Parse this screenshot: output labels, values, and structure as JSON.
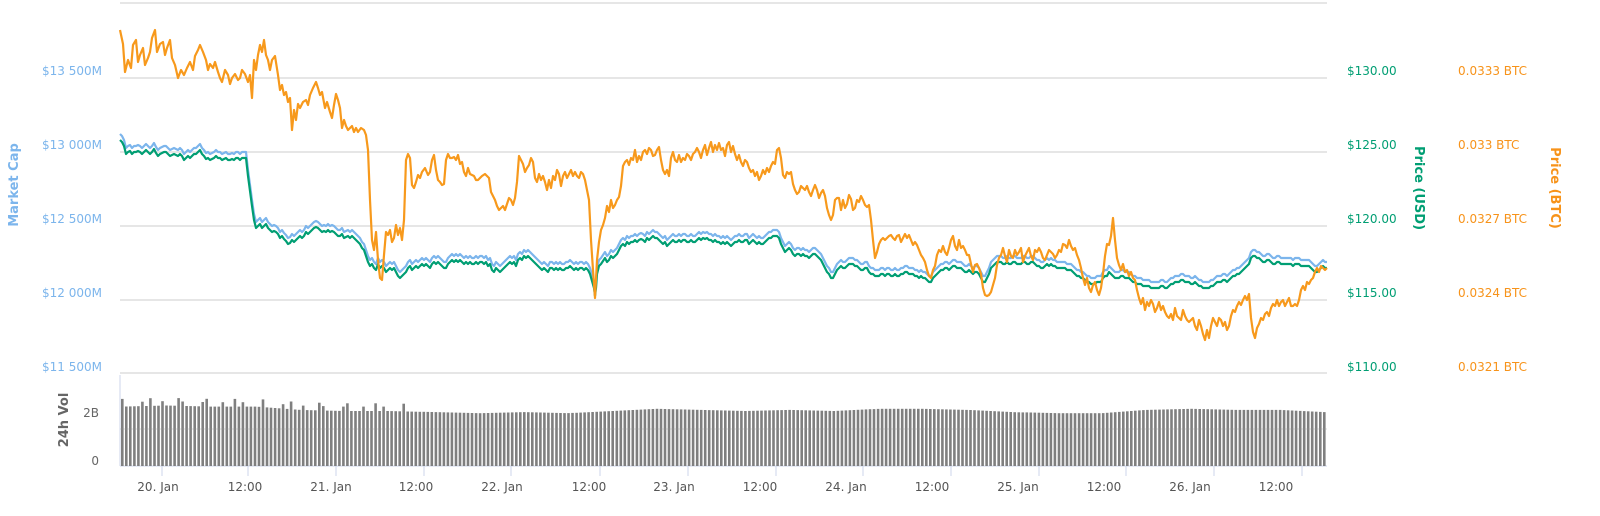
{
  "chart_data": {
    "type": "line",
    "title": "",
    "x_labels": [
      "20. Jan",
      "12:00",
      "21. Jan",
      "12:00",
      "22. Jan",
      "12:00",
      "23. Jan",
      "12:00",
      "24. Jan",
      "12:00",
      "25. Jan",
      "12:00",
      "26. Jan",
      "12:00"
    ],
    "axes": {
      "left": {
        "title": "Market Cap",
        "ticks": [
          "$13 500M",
          "$13 000M",
          "$12 500M",
          "$12 000M",
          "$11 500M"
        ],
        "range": [
          11500,
          13500
        ],
        "unit": "M USD"
      },
      "right_usd": {
        "title": "Price (USD)",
        "ticks": [
          "$130.00",
          "$125.00",
          "$120.00",
          "$115.00",
          "$110.00"
        ],
        "range": [
          110,
          130
        ]
      },
      "right_btc": {
        "title": "Price (BTC)",
        "ticks": [
          "0.0333 BTC",
          "0.033 BTC",
          "0.0327 BTC",
          "0.0324 BTC",
          "0.0321 BTC"
        ],
        "range": [
          0.0321,
          0.0333
        ]
      },
      "volume": {
        "title": "24h Vol",
        "ticks": [
          "2B",
          "0"
        ]
      }
    },
    "x": [
      "20 Jan 00:00",
      "20 Jan 06:00",
      "20 Jan 12:00",
      "20 Jan 18:00",
      "21 Jan 00:00",
      "21 Jan 06:00",
      "21 Jan 12:00",
      "21 Jan 18:00",
      "22 Jan 00:00",
      "22 Jan 06:00",
      "22 Jan 12:00",
      "22 Jan 18:00",
      "23 Jan 00:00",
      "23 Jan 06:00",
      "23 Jan 12:00",
      "23 Jan 18:00",
      "24 Jan 00:00",
      "24 Jan 06:00",
      "24 Jan 12:00",
      "24 Jan 18:00",
      "25 Jan 00:00",
      "25 Jan 06:00",
      "25 Jan 12:00",
      "25 Jan 18:00",
      "26 Jan 00:00",
      "26 Jan 06:00",
      "26 Jan 12:00",
      "26 Jan 18:00"
    ],
    "series": [
      {
        "name": "Market Cap",
        "color": "#7cb5ec",
        "unit": "M USD",
        "values": [
          13030,
          13020,
          12960,
          12500,
          12490,
          12470,
          12220,
          12280,
          12290,
          12260,
          12240,
          12380,
          12420,
          12440,
          12440,
          12380,
          12260,
          12200,
          12190,
          12180,
          12270,
          12260,
          12180,
          12130,
          12140,
          12190,
          12310,
          12250
        ]
      },
      {
        "name": "Price (USD)",
        "color": "#009e73",
        "values": [
          124.6,
          124.5,
          124.0,
          118.1,
          118.0,
          117.8,
          115.4,
          115.9,
          116.0,
          115.8,
          115.5,
          116.8,
          117.1,
          117.3,
          117.3,
          116.7,
          115.5,
          114.9,
          114.8,
          114.7,
          115.6,
          115.5,
          114.6,
          114.1,
          114.2,
          114.7,
          115.9,
          115.3
        ]
      },
      {
        "name": "Price (BTC)",
        "color": "#f7931a",
        "values": [
          0.03345,
          0.03335,
          0.03335,
          0.03318,
          0.03305,
          0.03298,
          0.03235,
          0.03285,
          0.033,
          0.0329,
          0.03288,
          0.033,
          0.03303,
          0.03305,
          0.033,
          0.03285,
          0.03275,
          0.03258,
          0.03256,
          0.0325,
          0.03252,
          0.03254,
          0.0324,
          0.03233,
          0.03226,
          0.03227,
          0.03235,
          0.03248
        ]
      },
      {
        "name": "24h Vol",
        "color": "#777777",
        "unit": "B USD",
        "values": [
          2.7,
          2.75,
          2.7,
          2.7,
          2.55,
          2.5,
          2.5,
          2.45,
          2.4,
          2.45,
          2.4,
          2.5,
          2.6,
          2.55,
          2.5,
          2.55,
          2.5,
          2.6,
          2.6,
          2.55,
          2.45,
          2.4,
          2.4,
          2.55,
          2.6,
          2.55,
          2.55,
          2.45
        ]
      }
    ],
    "grid": true,
    "legend": "none"
  },
  "paths": {
    "btc": "120,30 123,44 125,72 128,60 131,68 133,45 136,40 138,62 140,55 143,48 145,65 148,58 150,52 152,38 155,30 157,52 160,44 163,42 165,55 167,48 170,40 172,58 175,65 178,78 181,70 184,75 187,68 190,62 193,70 195,56 198,50 200,45 203,52 206,60 208,70 210,64 213,68 215,62 218,72 220,78 222,82 225,70 228,75 230,84 232,78 235,74 238,80 240,78 242,70 245,74 248,82 250,75 252,98 254,60 256,70 258,55 260,45 262,52 264,40 266,55 268,60 270,70 272,60 275,56 278,75 280,90 282,85 284,95 286,92 288,102 290,98 292,130 294,110 296,120 298,104 300,108 303,102 306,100 308,105 310,95 313,88 316,82 318,88 320,95 322,92 325,108 327,102 330,112 332,118 334,105 336,94 338,100 340,108 342,128 344,120 346,126 348,130 350,128 352,126 354,132 356,128 358,132 361,128 364,130 366,135 368,150 370,200 372,240 374,250 376,232 378,260 380,278 382,280 384,255 386,232 388,235 390,230 392,242 394,238 396,225 398,235 400,228 402,240 404,220 406,160 408,154 410,158 412,185 414,188 416,182 418,175 420,178 422,172 425,168 428,175 430,172 432,160 434,155 436,170 438,180 440,182 442,185 444,184 446,160 448,154 450,158 452,158 454,157 456,160 458,155 460,164 462,162 464,172 466,176 468,168 470,174 472,175 474,176 476,180 478,180 480,178 482,176 485,174 487,176 489,178 491,192 493,196 495,200 497,206 499,210 501,208 503,206 505,210 507,204 509,198 511,200 513,205 515,198 517,182 519,156 521,160 523,164 525,172 527,168 529,165 531,158 533,162 535,178 537,182 539,174 541,180 543,176 545,182 547,190 549,180 551,188 553,176 555,180 557,170 559,174 561,186 563,176 565,172 567,178 569,174 571,170 573,176 575,172 577,176 579,178 581,172 583,174 585,180 587,190 589,200 591,240 593,270 595,298 597,260 599,242 601,230 603,225 605,218 607,206 609,212 611,200 613,208 615,205 617,200 619,197 621,186 623,166 625,162 627,160 629,165 631,158 633,160 635,150 637,162 639,156 641,160 643,152 645,150 647,154 649,148 651,150 653,156 655,155 657,150 659,147 661,160 663,170 665,174 667,170 669,176 671,158 673,152 675,160 677,162 679,155 681,162 683,158 685,160 687,154 689,156 691,160 693,154 695,152 697,148 699,152 701,158 703,150 705,145 707,155 709,148 711,142 713,152 715,145 717,150 719,143 721,150 723,148 725,156 727,145 729,142 731,152 733,146 735,154 737,160 739,155 741,162 743,166 745,160 747,162 749,168 751,172 753,170 755,176 757,172 759,180 761,176 763,170 765,174 767,168 769,172 771,166 773,162 775,164 777,150 779,148 781,158 783,175 785,178 787,172 789,174 791,172 793,184 795,190 797,194 799,192 801,186 803,188 805,190 807,186 809,192 811,196 813,190 815,185 817,190 819,198 821,193 823,190 825,196 827,208 829,215 831,220 833,215 835,200 837,198 839,198 841,210 843,200 845,208 847,204 849,195 851,199 853,210 855,208 857,200 859,202 861,196 863,200 865,205 867,207 869,205 871,220 873,240 875,258 877,252 879,244 881,240 883,238 885,240 887,238 889,236 891,235 893,238 895,240 897,236 899,235 901,242 903,238 905,234 907,238 909,235 911,240 913,245 915,242 917,245 919,250 921,255 923,258 925,262 927,270 929,276 931,278 933,270 935,266 937,255 939,250 941,252 943,246 945,252 947,255 949,248 951,240 953,236 955,246 957,250 959,240 961,248 963,246 965,250 967,255 969,255 971,264 973,272 975,265 977,264 979,268 981,274 983,288 985,295 987,296 989,295 991,292 993,285 995,278 997,265 999,258 1001,255 1003,248 1005,256 1007,262 1009,250 1011,256 1013,258 1015,250 1017,255 1019,252 1021,248 1023,262 1025,256 1027,252 1029,248 1031,256 1033,260 1035,250 1037,252 1039,248 1041,252 1043,258 1045,260 1047,255 1049,250 1051,252 1053,254 1055,258 1057,255 1059,250 1061,252 1063,244 1065,245 1067,248 1069,240 1071,246 1073,250 1075,248 1077,255 1079,260 1081,268 1083,278 1085,285 1087,278 1089,288 1091,292 1093,285 1095,282 1097,290 1099,295 1101,288 1103,274 1105,256 1107,244 1109,245 1111,236 1113,218 1115,240 1117,258 1119,265 1121,270 1123,264 1125,272 1127,270 1129,276 1131,272 1133,278 1135,280 1137,290 1139,298 1141,304 1143,298 1145,310 1147,302 1149,306 1151,300 1153,304 1155,312 1157,308 1159,302 1161,310 1163,306 1165,312 1167,316 1169,318 1171,314 1173,320 1175,308 1177,316 1179,318 1181,320 1183,310 1185,316 1187,320 1189,322 1191,320 1193,318 1195,326 1197,330 1199,320 1201,326 1203,334 1205,340 1207,330 1209,338 1211,326 1213,318 1215,322 1217,326 1219,318 1221,320 1223,326 1225,322 1227,330 1229,326 1231,316 1233,310 1235,312 1237,306 1239,302 1241,305 1243,300 1245,296 1247,300 1249,294 1251,318 1253,332 1255,338 1257,328 1259,324 1261,318 1263,320 1265,314 1267,312 1269,316 1271,308 1273,304 1275,306 1277,300 1279,306 1281,302 1283,300 1285,306 1287,302 1289,298 1291,306 1293,306 1295,304 1297,306 1299,300 1301,290 1303,286 1305,290 1307,282 1309,284 1311,280 1313,278 1315,272 1317,268 1319,272 1321,266 1323,268 1325,270 1327,268",
    "mcap": "120,134 122,136 124,140 126,148 128,146 130,145 132,148 134,146 136,146 138,145 140,146 142,148 144,146 146,144 148,146 150,148 152,146 154,143 156,147 158,150 160,148 162,147 164,146 166,146 168,148 170,150 172,149 174,148 176,149 178,150 180,148 182,150 184,154 186,152 188,150 190,152 192,150 194,148 196,148 198,146 200,144 202,148 204,150 206,153 208,152 210,154 212,153 214,152 216,150 218,152 220,152 222,154 224,153 226,152 228,154 230,154 232,153 234,154 236,152 238,152 240,154 242,152 244,152 246,152 248,170 250,185 252,200 254,214 256,222 258,220 260,218 262,222 264,220 266,218 268,222 270,224 272,226 274,225 276,226 278,228 280,232 282,230 284,233 286,235 288,238 290,237 292,234 294,236 296,234 298,232 300,230 302,232 304,230 306,226 308,228 310,226 312,224 314,222 316,221 318,222 320,224 322,226 324,225 326,226 328,224 330,226 332,225 334,226 336,228 338,230 340,230 342,228 344,232 346,231 348,230 350,232 352,230 354,232 356,234 358,236 360,238 362,242 364,244 366,250 368,256 370,260 372,258 374,262 376,264 378,258 380,262 382,260 384,262 386,266 388,264 390,262 392,264 394,262 396,266 398,270 400,272 402,270 404,268 406,266 408,262 410,260 412,264 414,262 416,260 418,262 420,260 422,258 424,260 426,258 428,260 430,262 432,258 434,256 436,258 438,256 440,258 442,260 444,262 446,262 448,258 450,256 452,254 454,256 456,254 458,256 460,254 462,256 464,258 466,256 468,258 470,256 472,258 474,258 476,256 478,258 480,256 482,256 484,258 486,256 488,260 490,258 492,264 494,266 496,262 498,264 500,266 502,264 504,262 506,260 508,258 510,256 512,258 514,256 516,260 518,254 520,252 522,254 524,250 526,252 528,250 530,252 532,254 534,256 536,258 538,260 540,262 542,264 544,262 546,264 548,266 550,262 552,262 554,264 556,262 558,264 560,262 562,264 564,264 566,262 568,262 570,260 572,262 574,264 576,262 578,264 580,262 582,262 584,264 586,262 588,264 590,268 592,275 594,282 595,290 596,282 597,268 599,260 601,258 603,255 605,252 607,256 609,254 611,250 613,252 615,250 617,248 619,244 621,240 623,238 625,240 627,236 629,238 631,236 633,236 635,234 637,236 639,234 641,233 643,234 645,236 647,232 649,234 651,232 653,230 655,232 657,232 659,234 661,236 663,238 665,236 667,240 669,238 671,236 673,234 675,236 677,236 679,234 681,236 683,234 685,234 687,236 689,236 691,234 693,236 695,236 697,234 699,232 701,234 703,232 705,233 707,232 709,234 711,234 713,236 715,234 717,236 719,236 721,238 723,236 725,238 727,236 729,238 731,240 733,238 735,236 737,236 739,234 741,236 743,236 745,234 747,234 749,238 751,236 753,234 755,236 757,238 759,236 761,238 763,238 765,236 767,234 769,232 771,232 773,230 775,230 777,230 779,232 781,238 783,242 785,246 787,244 789,242 791,244 793,248 795,250 797,248 799,248 801,250 803,248 805,250 807,250 809,252 811,250 813,248 815,248 817,250 819,252 821,254 823,258 825,262 827,266 829,268 831,272 833,272 835,268 837,264 839,262 841,260 843,262 845,262 847,260 849,258 851,258 853,258 855,260 857,260 859,262 861,264 863,264 865,262 867,262 869,266 871,268 873,268 875,270 877,270 879,270 881,268 883,268 885,270 887,268 889,268 891,270 893,270 895,268 897,270 899,270 901,268 903,268 905,266 907,266 909,268 911,268 913,268 915,270 917,270 919,272 921,270 923,272 925,272 927,274 929,276 931,276 933,272 935,270 937,268 939,266 941,264 943,264 945,262 947,262 949,264 951,262 953,260 955,260 957,262 959,262 961,262 963,264 965,266 967,266 969,264 971,266 973,268 975,266 977,266 979,268 981,272 983,276 985,276 987,272 989,268 991,262 993,260 995,258 997,256 999,256 1001,256 1003,258 1005,258 1007,256 1009,258 1011,258 1013,256 1015,256 1017,258 1019,258 1021,258 1023,256 1025,256 1027,258 1029,258 1031,256 1033,256 1035,258 1037,260 1039,260 1041,262 1043,262 1045,260 1047,258 1049,260 1051,258 1053,260 1055,260 1057,262 1059,262 1061,262 1063,262 1065,262 1067,264 1069,264 1071,264 1073,266 1075,268 1077,270 1079,270 1081,272 1083,272 1085,274 1087,276 1089,276 1091,278 1093,278 1095,278 1097,276 1099,276 1101,276 1103,272 1105,270 1107,270 1109,266 1111,268 1113,270 1115,272 1117,272 1119,272 1121,270 1123,270 1125,272 1127,272 1129,272 1131,274 1133,276 1135,276 1137,278 1139,278 1141,278 1143,280 1145,280 1147,280 1149,280 1151,282 1153,282 1155,282 1157,282 1159,282 1161,280 1163,280 1165,282 1167,282 1169,280 1171,278 1173,278 1175,276 1177,276 1179,276 1181,274 1183,274 1185,276 1187,276 1189,276 1191,278 1193,278 1195,276 1197,278 1199,280 1201,280 1203,282 1205,282 1207,282 1209,282 1211,280 1213,280 1215,278 1217,276 1219,276 1221,276 1223,274 1225,274 1227,276 1229,274 1231,272 1233,270 1235,270 1237,268 1239,268 1241,266 1243,264 1245,262 1247,260 1249,258 1251,252 1253,250 1255,250 1257,252 1259,252 1261,254 1263,256 1265,256 1267,254 1269,254 1271,256 1273,258 1275,258 1277,256 1279,256 1281,258 1283,258 1285,258 1287,258 1289,258 1291,258 1293,260 1295,258 1297,258 1299,258 1301,260 1303,260 1305,260 1307,260 1309,260 1311,262 1313,264 1315,266 1317,266 1319,264 1321,262 1323,260 1325,262 1327,262",
    "usd_offset": 6,
    "volume_bars": {
      "x_start": 121,
      "x_end": 1327,
      "count": 300,
      "base_y": 466
    }
  }
}
